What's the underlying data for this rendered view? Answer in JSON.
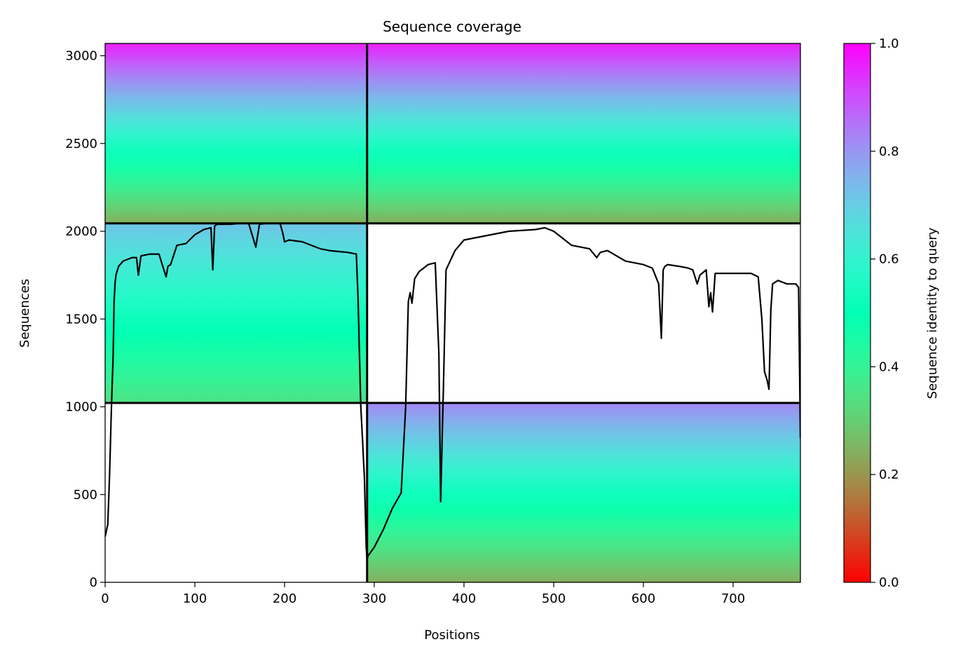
{
  "chart_data": {
    "type": "heatmap",
    "title": "Sequence coverage",
    "xlabel": "Positions",
    "ylabel": "Sequences",
    "xlim": [
      0,
      775
    ],
    "ylim": [
      0,
      3070
    ],
    "x_ticks": [
      0,
      100,
      200,
      300,
      400,
      500,
      600,
      700
    ],
    "y_ticks": [
      0,
      500,
      1000,
      1500,
      2000,
      2500,
      3000
    ],
    "colormap": "rainbow_r",
    "colorbar": {
      "label": "Sequence identity to query",
      "range": [
        0,
        1
      ],
      "ticks": [
        0.0,
        0.2,
        0.4,
        0.6,
        0.8,
        1.0
      ],
      "tick_labels": [
        "0.0",
        "0.2",
        "0.4",
        "0.6",
        "0.8",
        "1.0"
      ]
    },
    "separators": {
      "x": [
        292
      ],
      "y": [
        1022,
        2045
      ]
    },
    "blocks": [
      {
        "x0": 0,
        "x1": 292,
        "y0": 1022,
        "y1": 2045,
        "id_bottom": 0.35,
        "id_top": 0.72
      },
      {
        "x0": 292,
        "x1": 775,
        "y0": 0,
        "y1": 1022,
        "id_bottom": 0.24,
        "id_top": 0.82
      },
      {
        "x0": 0,
        "x1": 292,
        "y0": 2045,
        "y1": 3070,
        "id_bottom": 0.24,
        "id_top": 0.96
      },
      {
        "x0": 292,
        "x1": 775,
        "y0": 2045,
        "y1": 3070,
        "id_bottom": 0.24,
        "id_top": 0.96
      }
    ],
    "coverage_line": {
      "x": [
        0,
        3,
        5,
        7,
        9,
        10,
        11,
        12,
        15,
        20,
        25,
        30,
        35,
        37,
        40,
        50,
        60,
        68,
        70,
        73,
        80,
        90,
        100,
        110,
        118,
        120,
        122,
        125,
        140,
        150,
        160,
        168,
        172,
        180,
        195,
        198,
        200,
        205,
        220,
        240,
        250,
        270,
        280,
        282,
        283,
        285,
        287,
        288,
        289,
        290,
        291,
        292,
        293,
        300,
        310,
        320,
        330,
        335,
        338,
        340,
        342,
        345,
        350,
        360,
        368,
        372,
        374,
        377,
        380,
        390,
        400,
        420,
        450,
        480,
        490,
        500,
        520,
        540,
        548,
        552,
        560,
        580,
        600,
        610,
        617,
        620,
        622,
        624,
        627,
        640,
        650,
        655,
        660,
        663,
        670,
        673,
        675,
        677,
        680,
        700,
        720,
        728,
        732,
        735,
        738,
        740,
        742,
        744,
        750,
        760,
        770,
        773,
        775
      ],
      "y": [
        260,
        330,
        620,
        1000,
        1300,
        1600,
        1700,
        1750,
        1800,
        1830,
        1840,
        1850,
        1850,
        1750,
        1860,
        1870,
        1870,
        1740,
        1800,
        1810,
        1920,
        1930,
        1980,
        2010,
        2020,
        1780,
        2030,
        2040,
        2040,
        2045,
        2045,
        1910,
        2040,
        2045,
        2045,
        1990,
        1940,
        1950,
        1940,
        1900,
        1890,
        1880,
        1870,
        1600,
        1400,
        1000,
        800,
        700,
        600,
        400,
        200,
        130,
        150,
        200,
        300,
        420,
        510,
        1000,
        1600,
        1650,
        1590,
        1730,
        1770,
        1810,
        1820,
        1300,
        460,
        1100,
        1780,
        1890,
        1950,
        1970,
        2000,
        2010,
        2020,
        2000,
        1920,
        1900,
        1850,
        1880,
        1890,
        1830,
        1810,
        1790,
        1700,
        1390,
        1780,
        1800,
        1810,
        1800,
        1790,
        1780,
        1700,
        1750,
        1780,
        1570,
        1650,
        1540,
        1760,
        1760,
        1760,
        1740,
        1500,
        1200,
        1150,
        1100,
        1550,
        1700,
        1720,
        1700,
        1700,
        1680,
        820
      ]
    }
  }
}
